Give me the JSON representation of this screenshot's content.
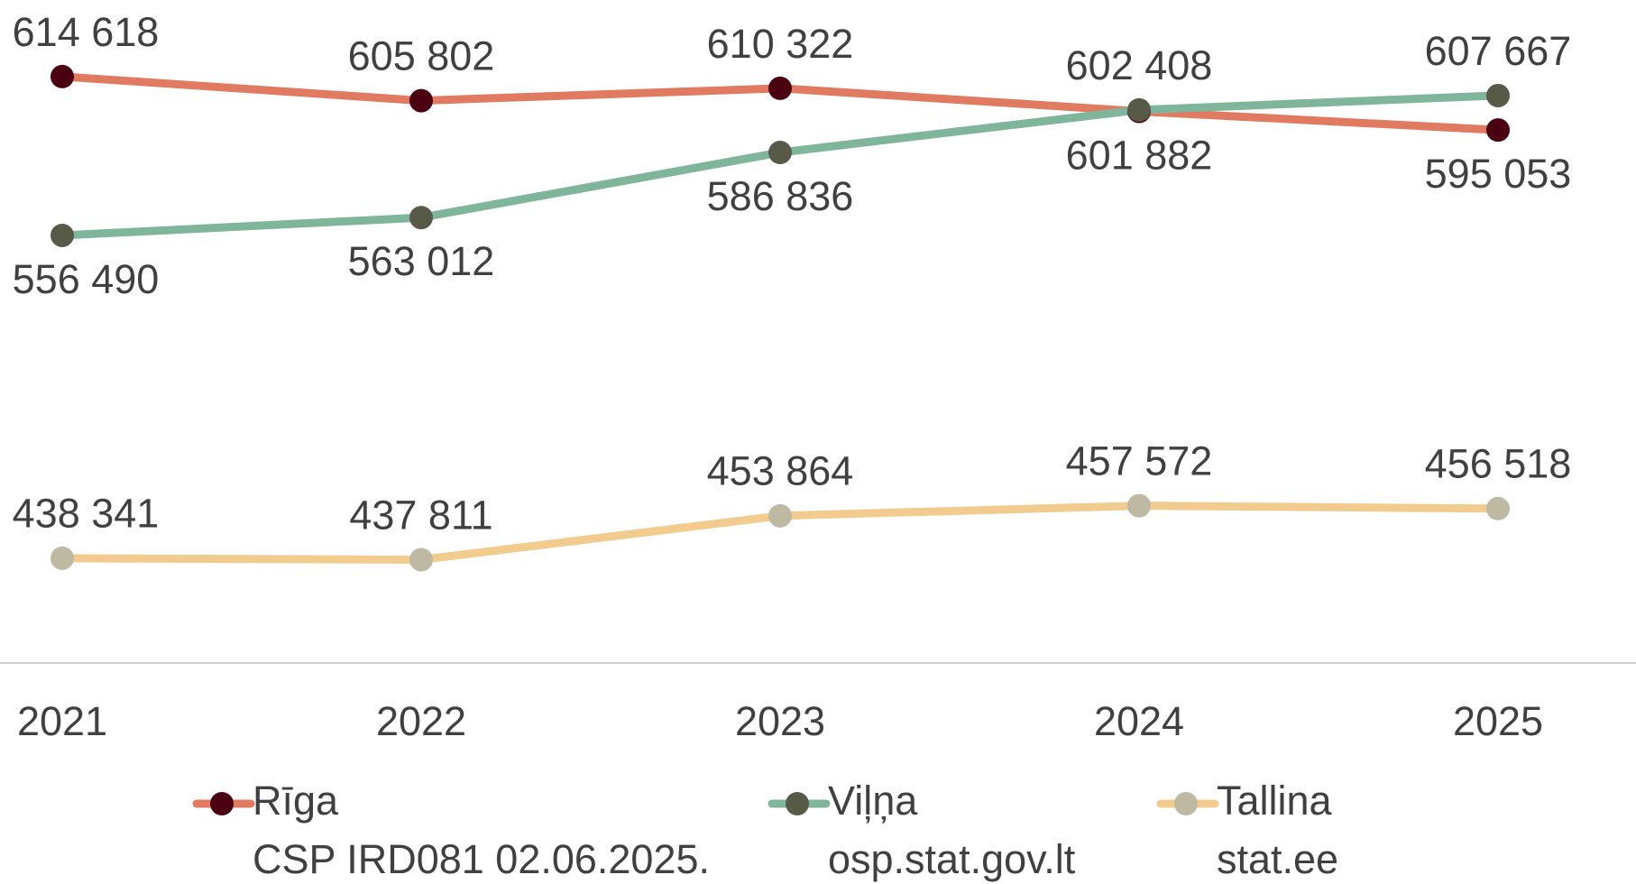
{
  "chart_data": {
    "type": "line",
    "categories": [
      "2021",
      "2022",
      "2023",
      "2024",
      "2025"
    ],
    "ylim": [
      400000,
      640000
    ],
    "series": [
      {
        "name": "Rīga",
        "color": "#e07b62",
        "marker_color": "#4a0010",
        "source": "CSP IRD081 02.06.2025.",
        "values": [
          614618,
          605802,
          610322,
          601882,
          595053
        ],
        "value_labels": [
          "614 618",
          "605 802",
          "610 322",
          "601 882",
          "595 053"
        ]
      },
      {
        "name": "Viļņa",
        "color": "#7fb59a",
        "marker_color": "#585a48",
        "source": "osp.stat.gov.lt",
        "values": [
          556490,
          563012,
          586836,
          602408,
          607667
        ],
        "value_labels": [
          "556 490",
          "563 012",
          "586 836",
          "602 408",
          "607 667"
        ]
      },
      {
        "name": "Tallina",
        "color": "#f2cc8f",
        "marker_color": "#bdb9a2",
        "source": "stat.ee",
        "values": [
          438341,
          437811,
          453864,
          457572,
          456518
        ],
        "value_labels": [
          "438 341",
          "437 811",
          "453 864",
          "457 572",
          "456 518"
        ]
      }
    ]
  }
}
